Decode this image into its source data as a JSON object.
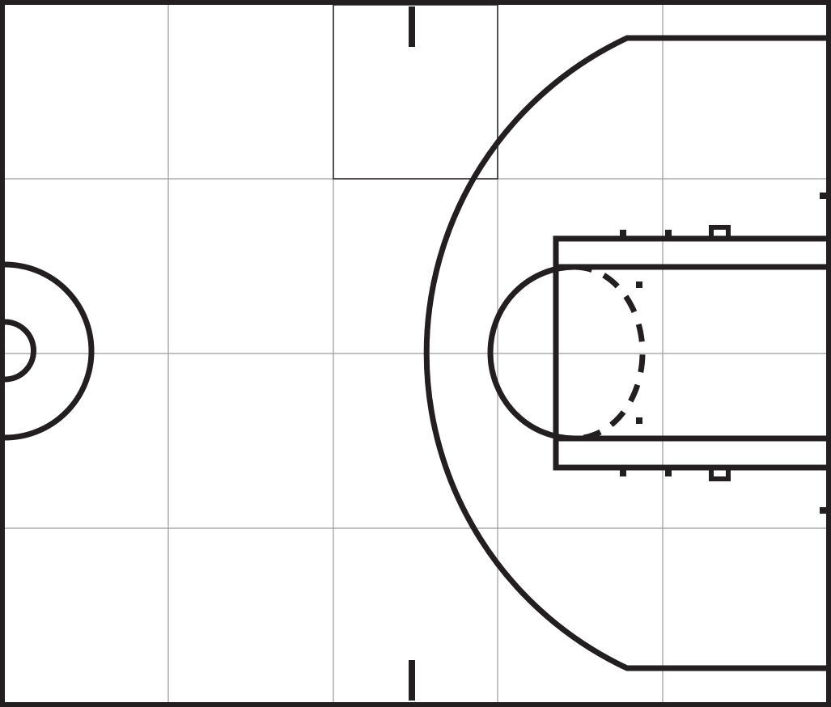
{
  "diagram": {
    "kind": "basketball-half-court",
    "orientation": "basket-on-right",
    "grid": {
      "columns": 5,
      "rows": 4,
      "visible": true
    },
    "highlighted_cell": {
      "column": 3,
      "row": 1
    },
    "colors": {
      "background": "#ffffff",
      "court_lines": "#231f20",
      "grid_lines": "#9a9a9a",
      "highlight_cell": "#231f20"
    },
    "elements": [
      "outer-boundary",
      "center-circle",
      "center-restraining-circle",
      "three-point-line",
      "free-throw-lane",
      "inner-lane",
      "free-throw-circle-top",
      "free-throw-circle-bottom-dashed",
      "lane-space-marks",
      "coaching-box-marks",
      "baseline-hash-marks"
    ]
  }
}
